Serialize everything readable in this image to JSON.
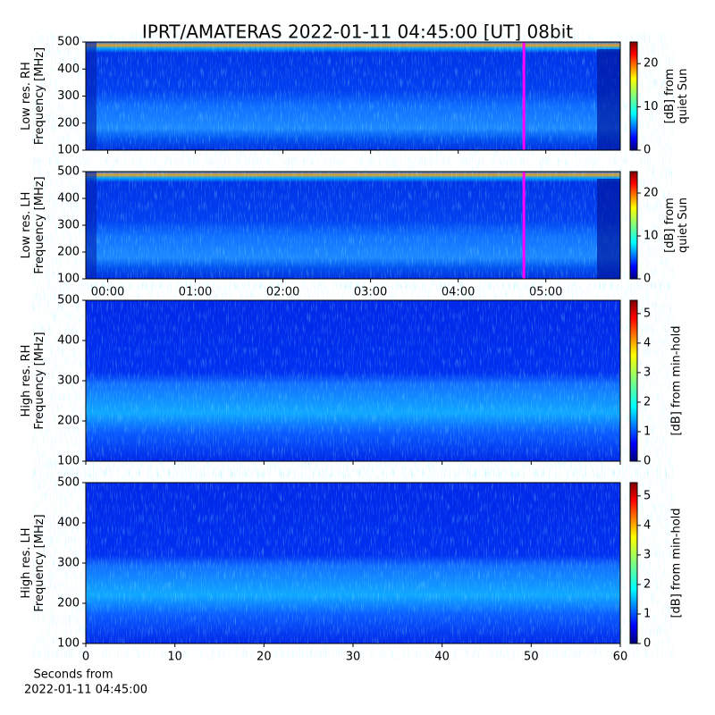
{
  "chart_data": [
    {
      "type": "heatmap",
      "title": "IPRT/AMATERAS 2022-01-11 04:45:00 [UT]   08bit",
      "ylabel": [
        "Low res. RH",
        "Frequency [MHz]"
      ],
      "xlim": [
        -0.25,
        5.85
      ],
      "ylim": [
        100,
        500
      ],
      "yticks": [
        100,
        200,
        300,
        400,
        500
      ],
      "markers": [
        4.75
      ],
      "marker_color": "#ff00ff",
      "colorbar": {
        "lim": [
          0,
          25
        ],
        "ticks": [
          0,
          10,
          20
        ],
        "label": [
          "[dB] from",
          "quiet Sun"
        ]
      }
    },
    {
      "type": "heatmap",
      "ylabel": [
        "Low res. LH",
        "Frequency [MHz]"
      ],
      "xlim": [
        -0.25,
        5.85
      ],
      "ylim": [
        100,
        500
      ],
      "yticks": [
        100,
        200,
        300,
        400,
        500
      ],
      "xticks": [
        {
          "value": 0,
          "label": "00:00"
        },
        {
          "value": 1,
          "label": "01:00"
        },
        {
          "value": 2,
          "label": "02:00"
        },
        {
          "value": 3,
          "label": "03:00"
        },
        {
          "value": 4,
          "label": "04:00"
        },
        {
          "value": 5,
          "label": "05:00"
        }
      ],
      "markers": [
        4.75
      ],
      "marker_color": "#ff00ff",
      "colorbar": {
        "lim": [
          0,
          25
        ],
        "ticks": [
          0,
          10,
          20
        ],
        "label": [
          "[dB] from",
          "quiet Sun"
        ]
      }
    },
    {
      "type": "heatmap",
      "ylabel": [
        "High res. RH",
        "Frequency [MHz]"
      ],
      "xlim": [
        0,
        60
      ],
      "ylim": [
        100,
        500
      ],
      "yticks": [
        100,
        200,
        300,
        400,
        500
      ],
      "colorbar": {
        "lim": [
          0,
          5.45
        ],
        "ticks": [
          0,
          1,
          2,
          3,
          4,
          5
        ],
        "label": [
          "[dB] from min-hold"
        ]
      }
    },
    {
      "type": "heatmap",
      "ylabel": [
        "High res. LH",
        "Frequency [MHz]"
      ],
      "xlim": [
        0,
        60
      ],
      "ylim": [
        100,
        500
      ],
      "yticks": [
        100,
        200,
        300,
        400,
        500
      ],
      "xticks": [
        0,
        10,
        20,
        30,
        40,
        50,
        60
      ],
      "xlabel": [
        "Seconds from",
        "2022-01-11 04:45:00"
      ],
      "colorbar": {
        "lim": [
          0,
          5.45
        ],
        "ticks": [
          0,
          1,
          2,
          3,
          4,
          5
        ],
        "label": [
          "[dB] from min-hold"
        ]
      }
    }
  ]
}
